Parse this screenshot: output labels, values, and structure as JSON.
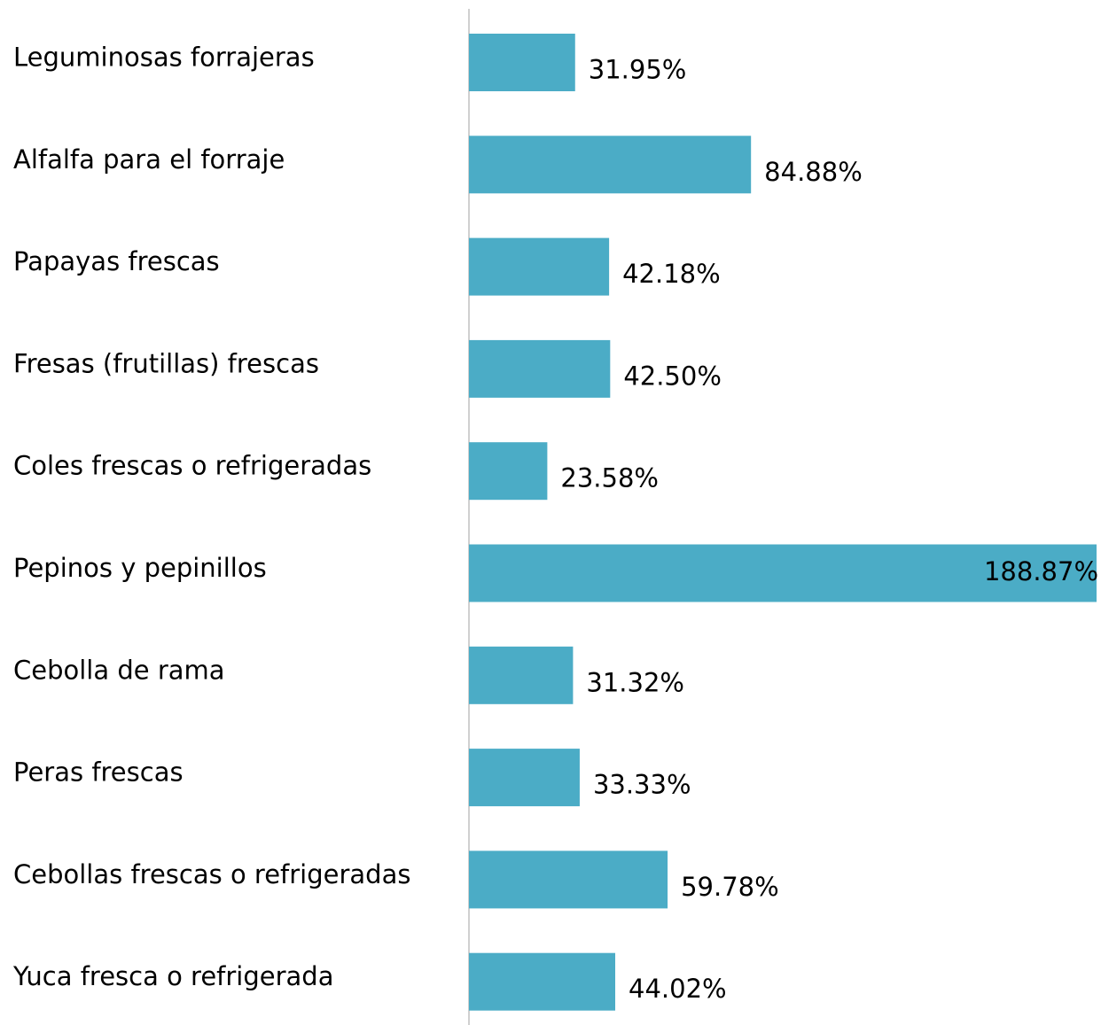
{
  "chart_data": {
    "type": "bar",
    "orientation": "horizontal",
    "categories": [
      "Leguminosas forrajeras",
      "Alfalfa para el forraje",
      "Papayas frescas",
      "Fresas (frutillas) frescas",
      "Coles frescas o refrigeradas",
      "Pepinos y pepinillos",
      "Cebolla de rama",
      "Peras frescas",
      "Cebollas frescas o refrigeradas",
      "Yuca fresca o refrigerada"
    ],
    "values": [
      31.95,
      84.88,
      42.18,
      42.5,
      23.58,
      188.87,
      31.32,
      33.33,
      59.78,
      44.02
    ],
    "value_labels": [
      "31.95%",
      "84.88%",
      "42.18%",
      "42.50%",
      "23.58%",
      "188.87%",
      "31.32%",
      "33.33%",
      "59.78%",
      "44.02%"
    ],
    "color": "#4bacc6"
  }
}
